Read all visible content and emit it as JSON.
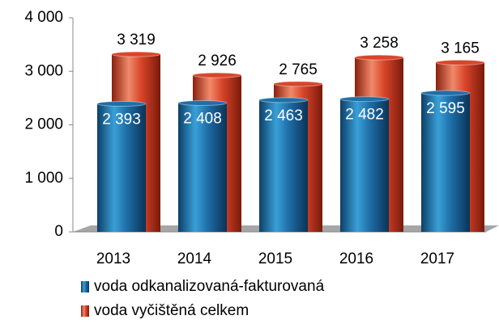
{
  "chart_data": {
    "type": "bar",
    "categories": [
      "2013",
      "2014",
      "2015",
      "2016",
      "2017"
    ],
    "series": [
      {
        "name": "voda odkanalizovaná-fakturovaná",
        "color": "#1f6fa8",
        "values": [
          2393,
          2408,
          2463,
          2482,
          2595
        ],
        "value_labels": [
          "2 393",
          "2 408",
          "2 463",
          "2 482",
          "2 595"
        ]
      },
      {
        "name": "voda vyčištěná celkem",
        "color": "#d9452a",
        "values": [
          3319,
          2926,
          2765,
          3258,
          3165
        ],
        "value_labels": [
          "3 319",
          "2 926",
          "2 765",
          "3 258",
          "3 165"
        ]
      }
    ],
    "ylim": [
      0,
      4000
    ],
    "yticks": [
      {
        "value": 0,
        "label": "0"
      },
      {
        "value": 1000,
        "label": "1 000"
      },
      {
        "value": 2000,
        "label": "2 000"
      },
      {
        "value": 3000,
        "label": "3 000"
      },
      {
        "value": 4000,
        "label": "4 000"
      }
    ]
  }
}
